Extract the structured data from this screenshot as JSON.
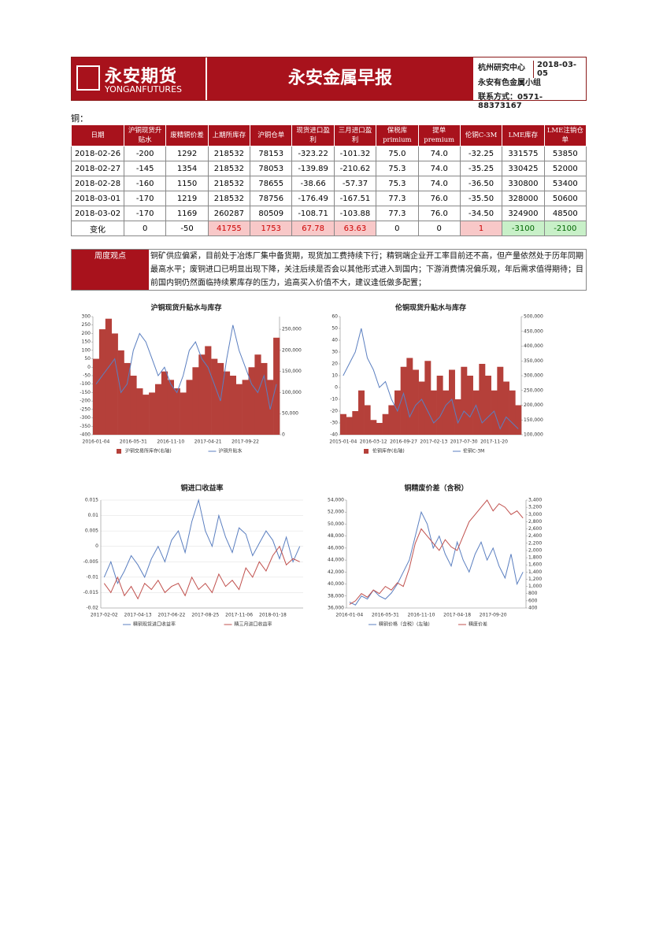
{
  "header": {
    "logo_name": "永安期货",
    "logo_english": "YONGANFUTURES",
    "title": "永安金属早报",
    "center": "杭州研究中心",
    "date": "2018-03-05",
    "group": "永安有色金属小组",
    "contact": "联系方式：0571-88373167"
  },
  "section": "铜：",
  "table": {
    "headers": [
      "日期",
      "沪铜现货升贴水",
      "废精铜价差",
      "上期所库存",
      "沪铜仓单",
      "现货进口盈利",
      "三月进口盈利",
      "保税库 primium",
      "提单 premium",
      "伦铜C-3M",
      "LME库存",
      "LME注销仓单"
    ],
    "rows": [
      [
        "2018-02-26",
        "-200",
        "1292",
        "218532",
        "78153",
        "-323.22",
        "-101.32",
        "75.0",
        "74.0",
        "-32.25",
        "331575",
        "53850"
      ],
      [
        "2018-02-27",
        "-145",
        "1354",
        "218532",
        "78053",
        "-139.89",
        "-210.62",
        "75.3",
        "74.0",
        "-35.25",
        "330425",
        "52000"
      ],
      [
        "2018-02-28",
        "-160",
        "1150",
        "218532",
        "78655",
        "-38.66",
        "-57.37",
        "75.3",
        "74.0",
        "-36.50",
        "330800",
        "53400"
      ],
      [
        "2018-03-01",
        "-170",
        "1219",
        "218532",
        "78756",
        "-176.49",
        "-167.51",
        "77.3",
        "76.0",
        "-35.50",
        "328000",
        "50600"
      ],
      [
        "2018-03-02",
        "-170",
        "1169",
        "260287",
        "80509",
        "-108.71",
        "-103.88",
        "77.3",
        "76.0",
        "-34.50",
        "324900",
        "48500"
      ],
      [
        "变化",
        "0",
        "-50",
        "41755",
        "1753",
        "67.78",
        "63.63",
        "0",
        "0",
        "1",
        "-3100",
        "-2100"
      ]
    ]
  },
  "view": {
    "label": "周度观点",
    "text": "铜矿供应偏紧，目前处于冶炼厂集中备货期，现货加工费持续下行；精铜端企业开工率目前还不高，但产量依然处于历年同期最高水平；废铜进口已明显出现下降，关注后续是否会以其他形式进入到国内；下游消费情况偏乐观，年后需求值得期待；目前国内铜仍然面临持续累库存的压力，追高买入价值不大，建议逢低做多配置；"
  },
  "chart_data": [
    {
      "type": "combo",
      "title": "沪铜现货升贴水与库存",
      "categories": [
        "2016-01-04",
        null,
        null,
        null,
        null,
        null,
        "2016-05-31",
        null,
        null,
        null,
        null,
        null,
        "2016-11-10",
        null,
        null,
        null,
        null,
        null,
        "2017-04-21",
        null,
        null,
        null,
        null,
        null,
        "2017-09-22",
        null,
        null,
        null,
        null,
        null
      ],
      "series": [
        {
          "name": "沪铜交易所库存(右轴)",
          "type": "bar",
          "axis": "y2",
          "color": "#b5403a",
          "values": [
            180000,
            250000,
            275000,
            240000,
            200000,
            170000,
            140000,
            110000,
            95000,
            100000,
            120000,
            150000,
            130000,
            110000,
            100000,
            130000,
            160000,
            190000,
            210000,
            180000,
            170000,
            150000,
            140000,
            120000,
            130000,
            160000,
            190000,
            170000,
            130000,
            230000
          ]
        },
        {
          "name": "沪铜升贴水",
          "type": "line",
          "color": "#5b7fc0",
          "values": [
            -100,
            -50,
            0,
            50,
            -150,
            -100,
            100,
            200,
            150,
            50,
            -50,
            0,
            -100,
            -150,
            -50,
            100,
            150,
            50,
            0,
            -100,
            -200,
            50,
            250,
            100,
            0,
            -100,
            -150,
            -50,
            -250,
            -100
          ]
        }
      ],
      "ylim": [
        -400,
        300
      ],
      "yticks": [
        -400,
        -350,
        -300,
        -250,
        -200,
        -150,
        -100,
        -50,
        0,
        50,
        100,
        150,
        200,
        250,
        300
      ],
      "y2lim": [
        0,
        280000
      ],
      "y2ticks": [
        0,
        {
          "value": 50000,
          "label": "50,000"
        },
        {
          "value": 100000,
          "label": "100,000"
        },
        {
          "value": 150000,
          "label": "150,000"
        },
        {
          "value": 200000,
          "label": "200,000"
        },
        {
          "value": 250000,
          "label": "250,000"
        }
      ],
      "grid": false
    },
    {
      "type": "combo",
      "title": "伦铜现货升贴水与库存",
      "categories": [
        "2015-01-04",
        null,
        null,
        null,
        null,
        "2016-03-12",
        null,
        null,
        null,
        null,
        "2016-09-27",
        null,
        null,
        null,
        null,
        "2017-02-13",
        null,
        null,
        null,
        null,
        "2017-07-30",
        null,
        null,
        null,
        null,
        "2017-11-20",
        null,
        null,
        null,
        null
      ],
      "series": [
        {
          "name": "伦铜库存(右轴)",
          "type": "bar",
          "axis": "y2",
          "color": "#b5403a",
          "values": [
            170000,
            160000,
            180000,
            250000,
            200000,
            150000,
            140000,
            170000,
            200000,
            250000,
            330000,
            360000,
            320000,
            280000,
            350000,
            250000,
            300000,
            250000,
            320000,
            220000,
            330000,
            300000,
            250000,
            340000,
            300000,
            250000,
            330000,
            280000,
            250000,
            200000
          ]
        },
        {
          "name": "伦铜C-3M",
          "type": "line",
          "color": "#5b7fc0",
          "values": [
            10,
            20,
            30,
            50,
            25,
            15,
            0,
            5,
            -10,
            -20,
            -5,
            -25,
            -15,
            -10,
            -20,
            -30,
            -25,
            -15,
            -10,
            -30,
            -20,
            -25,
            -15,
            -30,
            -25,
            -20,
            -35,
            -25,
            -30,
            -35
          ]
        }
      ],
      "ylim": [
        -40,
        60
      ],
      "yticks": [
        -40,
        -30,
        -20,
        -10,
        0,
        10,
        20,
        30,
        40,
        50,
        60
      ],
      "y2lim": [
        100000,
        500000
      ],
      "y2ticks": [
        {
          "value": 100000,
          "label": "100,000"
        },
        {
          "value": 150000,
          "label": "150,000"
        },
        {
          "value": 200000,
          "label": "200,000"
        },
        {
          "value": 250000,
          "label": "250,000"
        },
        {
          "value": 300000,
          "label": "300,000"
        },
        {
          "value": 350000,
          "label": "350,000"
        },
        {
          "value": 400000,
          "label": "400,000"
        },
        {
          "value": 450000,
          "label": "450,000"
        },
        {
          "value": 500000,
          "label": "500,000"
        }
      ],
      "grid": false
    },
    {
      "type": "line",
      "title": "铜进口收益率",
      "categories": [
        "2017-02-02",
        null,
        null,
        null,
        null,
        "2017-04-13",
        null,
        null,
        null,
        null,
        "2017-06-22",
        null,
        null,
        null,
        null,
        "2017-08-25",
        null,
        null,
        null,
        null,
        "2017-11-06",
        null,
        null,
        null,
        null,
        "2018-01-18",
        null,
        null,
        null,
        null
      ],
      "series": [
        {
          "name": "精铜现货进口收益率",
          "type": "line",
          "color": "#5b7fc0",
          "values": [
            -0.01,
            -0.005,
            -0.012,
            -0.008,
            -0.003,
            -0.006,
            -0.01,
            -0.004,
            0,
            -0.005,
            0.002,
            0.005,
            -0.002,
            0.008,
            0.015,
            0.005,
            0,
            0.01,
            0.003,
            -0.002,
            0.006,
            0.004,
            -0.003,
            0.001,
            0.005,
            0.002,
            -0.004,
            0.003,
            -0.005,
            0
          ]
        },
        {
          "name": "精三月进口收益率",
          "type": "line",
          "color": "#c0504d",
          "values": [
            -0.012,
            -0.015,
            -0.01,
            -0.016,
            -0.013,
            -0.017,
            -0.012,
            -0.014,
            -0.011,
            -0.015,
            -0.013,
            -0.012,
            -0.016,
            -0.01,
            -0.014,
            -0.012,
            -0.015,
            -0.009,
            -0.013,
            -0.011,
            -0.014,
            -0.007,
            -0.01,
            -0.005,
            -0.008,
            -0.003,
            0,
            -0.006,
            -0.004,
            -0.005
          ]
        }
      ],
      "ylim": [
        -0.02,
        0.015
      ],
      "yticks": [
        -0.02,
        -0.015,
        -0.01,
        -0.005,
        0,
        0.005,
        0.01,
        0.015
      ],
      "grid": true
    },
    {
      "type": "line",
      "title": "铜精废价差（含税）",
      "categories": [
        "2016-01-04",
        null,
        null,
        null,
        null,
        null,
        "2016-05-31",
        null,
        null,
        null,
        null,
        null,
        "2016-11-10",
        null,
        null,
        null,
        null,
        null,
        "2017-04-18",
        null,
        null,
        null,
        null,
        null,
        "2017-09-20",
        null,
        null,
        null,
        null,
        null
      ],
      "series": [
        {
          "name": "精铜价格（含税）(左轴)",
          "type": "line",
          "color": "#5b7fc0",
          "values": [
            37000,
            36500,
            38000,
            37500,
            39000,
            38000,
            37500,
            38500,
            40000,
            42000,
            44000,
            48000,
            52000,
            50000,
            46000,
            48000,
            45000,
            43000,
            47000,
            44000,
            42000,
            45000,
            47000,
            44000,
            46000,
            43000,
            41000,
            45000,
            40000,
            42000
          ]
        },
        {
          "name": "精废价差",
          "type": "line",
          "axis": "y2",
          "color": "#c0504d",
          "values": [
            500,
            600,
            800,
            700,
            900,
            800,
            1000,
            900,
            1100,
            1000,
            1500,
            2200,
            2600,
            2400,
            2200,
            2000,
            2300,
            2100,
            2000,
            2400,
            2800,
            3000,
            3200,
            3400,
            3100,
            3300,
            3200,
            3000,
            3100,
            2900
          ]
        }
      ],
      "ylim": [
        36000,
        54000
      ],
      "yticks": [
        {
          "value": 36000,
          "label": "36,000"
        },
        {
          "value": 38000,
          "label": "38,000"
        },
        {
          "value": 40000,
          "label": "40,000"
        },
        {
          "value": 42000,
          "label": "42,000"
        },
        {
          "value": 44000,
          "label": "44,000"
        },
        {
          "value": 46000,
          "label": "46,000"
        },
        {
          "value": 48000,
          "label": "48,000"
        },
        {
          "value": 50000,
          "label": "50,000"
        },
        {
          "value": 52000,
          "label": "52,000"
        },
        {
          "value": 54000,
          "label": "54,000"
        }
      ],
      "y2lim": [
        400,
        3400
      ],
      "y2ticks": [
        400,
        600,
        800,
        {
          "value": 1000,
          "label": "1,000"
        },
        {
          "value": 1200,
          "label": "1,200"
        },
        {
          "value": 1400,
          "label": "1,400"
        },
        {
          "value": 1600,
          "label": "1,600"
        },
        {
          "value": 1800,
          "label": "1,800"
        },
        {
          "value": 2000,
          "label": "2,000"
        },
        {
          "value": 2200,
          "label": "2,200"
        },
        {
          "value": 2400,
          "label": "2,400"
        },
        {
          "value": 2600,
          "label": "2,600"
        },
        {
          "value": 2800,
          "label": "2,800"
        },
        {
          "value": 3000,
          "label": "3,000"
        },
        {
          "value": 3200,
          "label": "3,200"
        },
        {
          "value": 3400,
          "label": "3,400"
        }
      ],
      "grid": false
    }
  ]
}
